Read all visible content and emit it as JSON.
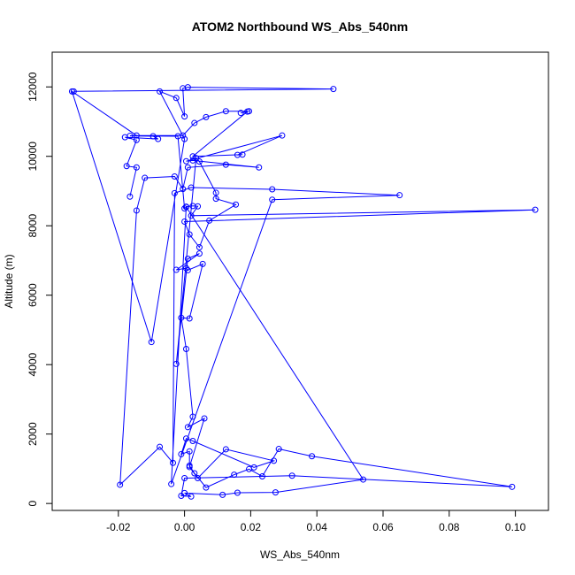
{
  "chart_data": {
    "type": "line",
    "title": "ATOM2 Northbound WS_Abs_540nm",
    "xlabel": "WS_Abs_540nm",
    "ylabel": "Altitude (m)",
    "xlim": [
      -0.04,
      0.11
    ],
    "ylim": [
      -200,
      13000
    ],
    "x_ticks": [
      -0.02,
      0.0,
      0.02,
      0.04,
      0.06,
      0.08,
      0.1
    ],
    "x_tick_labels": [
      "-0.02",
      "0.00",
      "0.02",
      "0.04",
      "0.06",
      "0.08",
      "0.10"
    ],
    "y_ticks": [
      0,
      2000,
      4000,
      6000,
      8000,
      10000,
      12000
    ],
    "y_tick_labels": [
      "0",
      "2000",
      "4000",
      "6000",
      "8000",
      "10000",
      "12000"
    ],
    "grid": false,
    "legend": "none",
    "series": [
      {
        "color": "#0000ff",
        "marker": "open-circle",
        "points": [
          [
            -0.0335,
            11870
          ],
          [
            0.045,
            11940
          ],
          [
            0.001,
            11990
          ],
          [
            -0.0005,
            11960
          ],
          [
            0.0,
            11150
          ],
          [
            -0.0025,
            11680
          ],
          [
            -0.0075,
            11870
          ],
          [
            0.0,
            10500
          ],
          [
            -0.01,
            4650
          ],
          [
            -0.034,
            11870
          ],
          [
            -0.0145,
            10600
          ],
          [
            -0.0005,
            10600
          ],
          [
            0.003,
            10960
          ],
          [
            0.0065,
            11130
          ],
          [
            0.0125,
            11300
          ],
          [
            0.0195,
            11300
          ],
          [
            0.017,
            11250
          ],
          [
            0.019,
            11290
          ],
          [
            0.0025,
            10000
          ],
          [
            0.0175,
            10050
          ],
          [
            0.016,
            10040
          ],
          [
            0.0295,
            10600
          ],
          [
            0.0005,
            9860
          ],
          [
            0.0025,
            9880
          ],
          [
            0.0225,
            9680
          ],
          [
            0.0125,
            9760
          ],
          [
            0.001,
            9680
          ],
          [
            -0.0005,
            9060
          ],
          [
            -0.003,
            9420
          ],
          [
            -0.012,
            9380
          ],
          [
            -0.0145,
            8440
          ],
          [
            -0.0195,
            540
          ],
          [
            -0.0075,
            1630
          ],
          [
            -0.0035,
            1170
          ],
          [
            -0.003,
            8940
          ],
          [
            0.002,
            9100
          ],
          [
            0.0265,
            9050
          ],
          [
            0.065,
            8880
          ],
          [
            0.0265,
            8750
          ],
          [
            -0.004,
            560
          ],
          [
            0.0005,
            8550
          ],
          [
            0.0025,
            8570
          ],
          [
            0.004,
            8560
          ],
          [
            0.002,
            8290
          ],
          [
            0.106,
            8460
          ],
          [
            0.0,
            8120
          ],
          [
            0.0015,
            7750
          ],
          [
            0.0045,
            7380
          ],
          [
            0.0075,
            8150
          ],
          [
            0.0155,
            8610
          ],
          [
            0.0095,
            8780
          ],
          [
            0.0095,
            8950
          ],
          [
            0.0045,
            9850
          ],
          [
            0.0035,
            9950
          ],
          [
            -0.0025,
            4020
          ],
          [
            0.001,
            7050
          ],
          [
            0.0045,
            7200
          ],
          [
            -0.0025,
            6730
          ],
          [
            0.0005,
            6780
          ],
          [
            0.001,
            6720
          ],
          [
            0.0055,
            6900
          ],
          [
            0.0015,
            5330
          ],
          [
            -0.001,
            5350
          ],
          [
            0.0005,
            4450
          ],
          [
            0.0025,
            2500
          ],
          [
            0.001,
            2200
          ],
          [
            0.006,
            2450
          ],
          [
            0.0015,
            1050
          ],
          [
            0.004,
            730
          ],
          [
            0.0125,
            1560
          ],
          [
            0.027,
            1230
          ],
          [
            0.021,
            1040
          ],
          [
            0.0025,
            1800
          ],
          [
            0.0005,
            1870
          ],
          [
            -0.001,
            1420
          ],
          [
            0.0015,
            1500
          ],
          [
            0.0015,
            1090
          ],
          [
            0.003,
            870
          ],
          [
            0.0065,
            460
          ],
          [
            0.015,
            830
          ],
          [
            0.0195,
            990
          ],
          [
            0.0235,
            780
          ],
          [
            0.0285,
            1570
          ],
          [
            0.0385,
            1360
          ],
          [
            0.099,
            480
          ],
          [
            0.0325,
            800
          ],
          [
            0.0,
            730
          ],
          [
            -0.001,
            220
          ],
          [
            0.002,
            200
          ],
          [
            0.0,
            300
          ],
          [
            0.0115,
            250
          ],
          [
            0.016,
            310
          ],
          [
            0.0275,
            320
          ],
          [
            0.054,
            690
          ],
          [
            0.0005,
            8540
          ],
          [
            0.0,
            8500
          ],
          [
            -0.002,
            10580
          ],
          [
            -0.0165,
            10590
          ],
          [
            -0.0095,
            10580
          ],
          [
            -0.008,
            10500
          ],
          [
            -0.018,
            10550
          ],
          [
            -0.0145,
            10470
          ],
          [
            -0.0175,
            9720
          ],
          [
            -0.0145,
            9680
          ],
          [
            -0.0165,
            8840
          ]
        ]
      }
    ]
  }
}
